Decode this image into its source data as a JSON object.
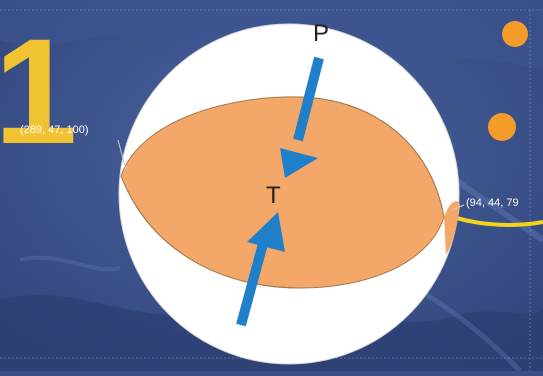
{
  "figure": {
    "numeral": "1",
    "nodal_plane_1": "(289, 47, 100)",
    "nodal_plane_2": "(94, 44, 79",
    "p_axis_label": "P",
    "t_axis_label": "T"
  },
  "colors": {
    "background": "#3a4f86",
    "compressional_quadrant": "#f3a86a",
    "dilatational_quadrant": "#ffffff",
    "arrow": "#1f7fc8",
    "fault_line": "#f5d31c",
    "epicenter_marker": "#f39c2a"
  },
  "icons": [
    "epicenter-marker-icon",
    "p-axis-arrow-icon",
    "t-axis-arrow-icon"
  ]
}
